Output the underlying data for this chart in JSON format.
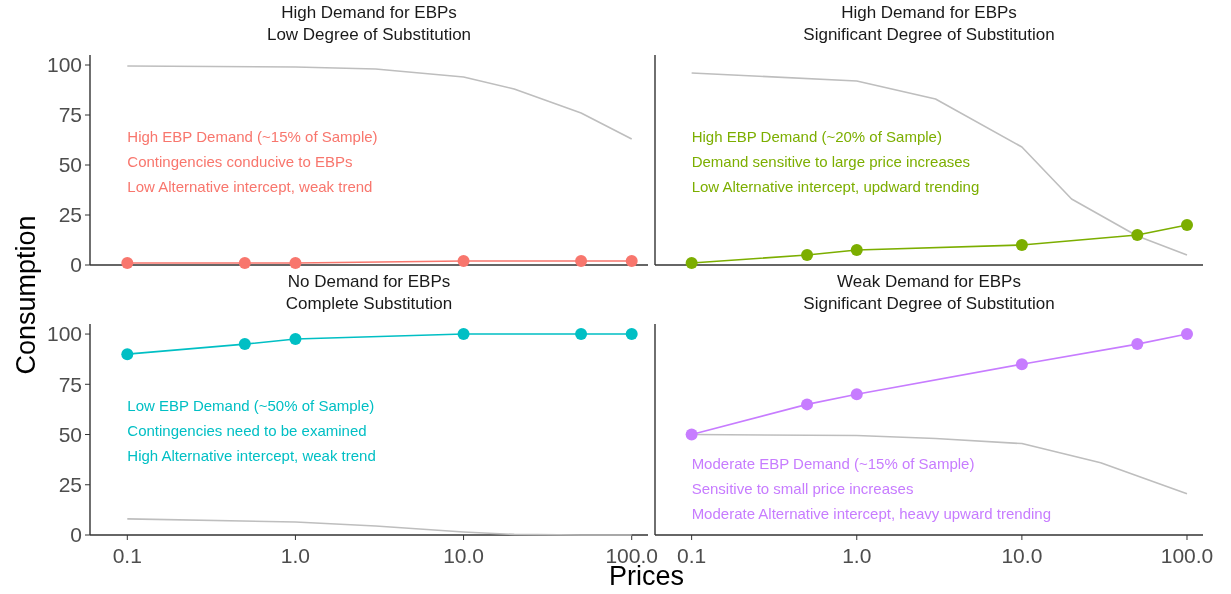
{
  "chart_data": [
    {
      "type": "line",
      "title": "High Demand for EBPs\nLow Degree of Substitution",
      "ylabel": "Consumption",
      "log": "x",
      "xlim": [
        0.06,
        125
      ],
      "ylim": [
        0,
        105
      ],
      "yticks": [
        0,
        25,
        50,
        75,
        100
      ],
      "tick_labels": "y",
      "annotations": [
        "High EBP Demand (~15% of Sample)",
        "Contingencies conducive to EBPs",
        "Low Alternative intercept, weak trend"
      ],
      "series": [
        {
          "color": "#bebebe",
          "marker": "none",
          "x": [
            0.1,
            1,
            3,
            10,
            20,
            50,
            100
          ],
          "values": [
            99.5,
            99,
            98,
            94,
            88,
            76,
            63
          ]
        },
        {
          "color": "#f8766d",
          "marker": "circle",
          "x": [
            0.1,
            0.5,
            1,
            10,
            50,
            100
          ],
          "values": [
            1,
            1,
            1,
            2,
            2,
            2
          ]
        }
      ]
    },
    {
      "type": "line",
      "title": "High Demand for EBPs\nSignificant Degree of Substitution",
      "log": "x",
      "xlim": [
        0.06,
        125
      ],
      "ylim": [
        0,
        105
      ],
      "tick_labels": false,
      "annotations": [
        "High EBP Demand (~20% of Sample)",
        "Demand sensitive to large price increases",
        "Low Alternative intercept, updward trending"
      ],
      "series": [
        {
          "color": "#bebebe",
          "marker": "none",
          "x": [
            0.1,
            1,
            3,
            10,
            20,
            50,
            100
          ],
          "values": [
            96,
            92,
            83,
            59,
            33,
            14.5,
            5
          ]
        },
        {
          "color": "#7cae00",
          "marker": "circle",
          "x": [
            0.1,
            0.5,
            1,
            10,
            50,
            100
          ],
          "values": [
            1,
            5,
            7.5,
            10,
            15,
            20
          ]
        }
      ]
    },
    {
      "type": "line",
      "title": "No Demand for EBPs\nComplete Substitution",
      "xlabel": "Prices",
      "log": "x",
      "xlim": [
        0.06,
        125
      ],
      "ylim": [
        0,
        105
      ],
      "yticks": [
        0,
        25,
        50,
        75,
        100
      ],
      "xticks": [
        0.1,
        {
          "value": 1,
          "label": "1.0"
        },
        {
          "value": 10,
          "label": "10.0"
        },
        {
          "value": 100,
          "label": "100.0"
        }
      ],
      "annotations": [
        "Low EBP Demand (~50% of Sample)",
        "Contingencies need to be examined",
        "High Alternative intercept, weak trend"
      ],
      "series": [
        {
          "color": "#bebebe",
          "marker": "none",
          "x": [
            0.1,
            1,
            3,
            10,
            20,
            50,
            100
          ],
          "values": [
            8,
            6.5,
            4.5,
            1.5,
            0.3,
            0,
            0
          ]
        },
        {
          "color": "#00bfc4",
          "marker": "circle",
          "x": [
            0.1,
            0.5,
            1,
            10,
            50,
            100
          ],
          "values": [
            90,
            95,
            97.5,
            100,
            100,
            100
          ]
        }
      ]
    },
    {
      "type": "line",
      "title": "Weak Demand for EBPs\nSignificant Degree of Substitution",
      "log": "x",
      "xlim": [
        0.06,
        125
      ],
      "ylim": [
        0,
        105
      ],
      "tick_labels": "x",
      "xticks": [
        0.1,
        {
          "value": 1,
          "label": "1.0"
        },
        {
          "value": 10,
          "label": "10.0"
        },
        {
          "value": 100,
          "label": "100.0"
        }
      ],
      "annotations": [
        "Moderate EBP Demand (~15% of Sample)",
        "Sensitive to small price increases",
        "Moderate Alternative intercept, heavy upward trending"
      ],
      "series": [
        {
          "color": "#bebebe",
          "marker": "none",
          "x": [
            0.1,
            1,
            3,
            10,
            30,
            100
          ],
          "values": [
            50,
            49.5,
            48,
            45.5,
            36,
            20.5
          ]
        },
        {
          "color": "#c77cff",
          "marker": "circle",
          "x": [
            0.1,
            0.5,
            1,
            10,
            50,
            100
          ],
          "values": [
            50,
            65,
            70,
            85,
            95,
            100
          ]
        }
      ]
    }
  ]
}
